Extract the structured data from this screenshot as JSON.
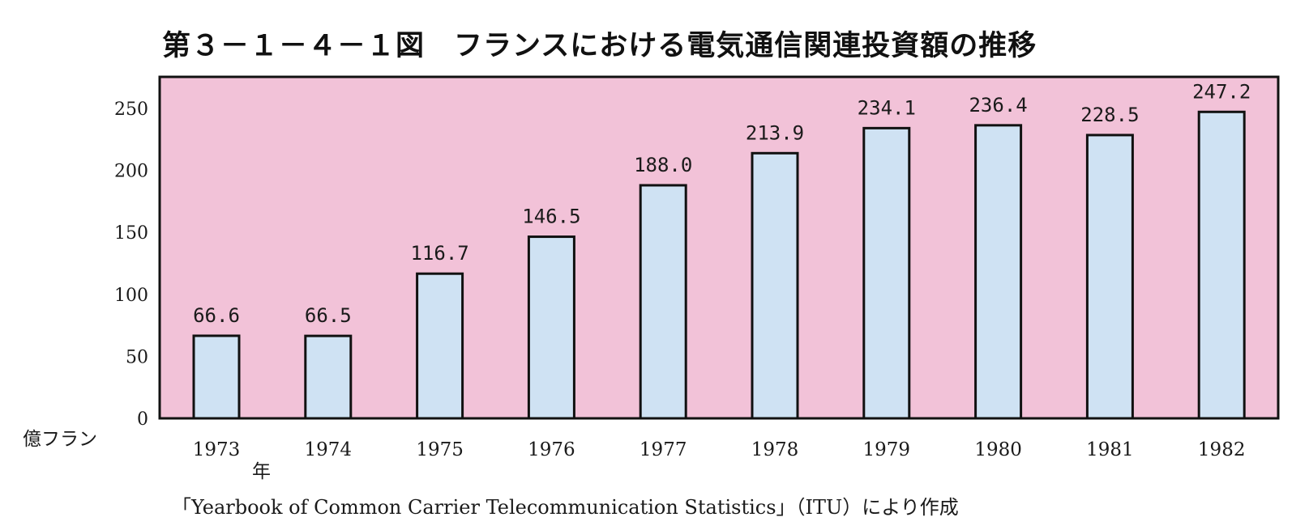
{
  "chart_data": {
    "type": "bar",
    "title": "第３－１－４－１図　フランスにおける電気通信関連投資額の推移",
    "ylabel": "億フラン",
    "xlabel": "年",
    "source": "「Yearbook of Common Carrier Telecommunication Statistics」（ITU）により作成",
    "categories": [
      "1973",
      "1974",
      "1975",
      "1976",
      "1977",
      "1978",
      "1979",
      "1980",
      "1981",
      "1982"
    ],
    "values": [
      66.6,
      66.5,
      116.7,
      146.5,
      188.0,
      213.9,
      234.1,
      236.4,
      228.5,
      247.2
    ],
    "value_labels": [
      "66.6",
      "66.5",
      "116.7",
      "146.5",
      "188.0",
      "213.9",
      "234.1",
      "236.4",
      "228.5",
      "247.2"
    ],
    "ylim": [
      0,
      265
    ],
    "yticks": [
      "0",
      "50",
      "100",
      "150",
      "200",
      "250"
    ],
    "grid": false,
    "legend": "none",
    "colors": {
      "plot_background": "#f2c2d8",
      "bar_fill": "#cfe2f3",
      "bar_stroke": "#111111",
      "axis": "#111111"
    }
  }
}
